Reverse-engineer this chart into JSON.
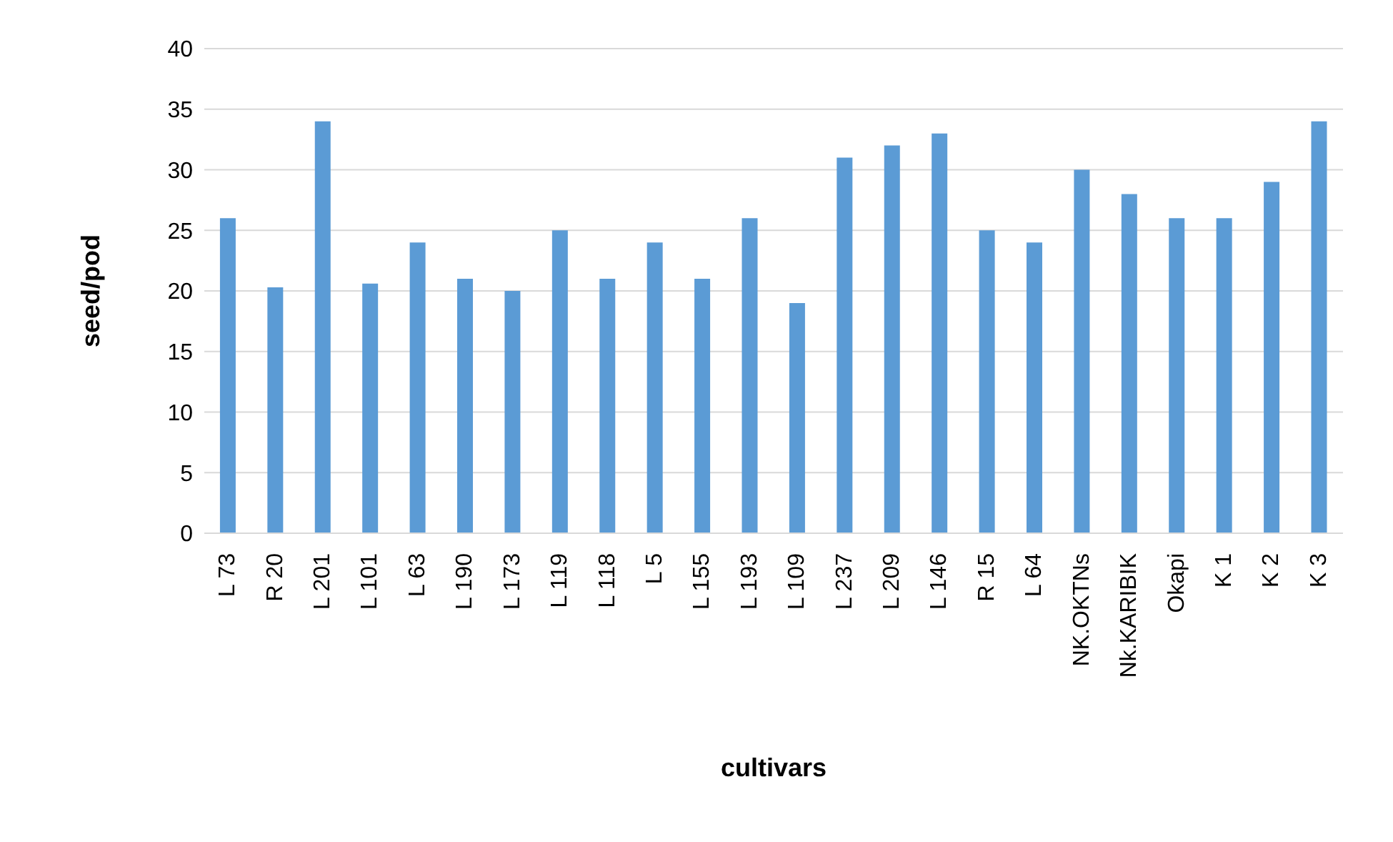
{
  "chart_data": {
    "type": "bar",
    "xlabel": "cultivars",
    "ylabel": "seed/pod",
    "categories": [
      "L 73",
      "R 20",
      "L 201",
      "L 101",
      "L 63",
      "L 190",
      "L 173",
      "L 119",
      "L 118",
      "L 5",
      "L 155",
      "L 193",
      "L 109",
      "L 237",
      "L 209",
      "L 146",
      "R 15",
      "L 64",
      "NK.OKTNs",
      "Nk.KARIBIK",
      "Okapi",
      "K 1",
      "K 2",
      "K 3"
    ],
    "values": [
      26,
      20.3,
      34,
      20.6,
      24,
      21,
      20,
      25,
      21,
      24,
      21,
      26,
      19,
      31,
      32,
      33,
      25,
      24,
      30,
      28,
      26,
      26,
      29,
      34
    ],
    "color": "#5b9bd5",
    "ylim": [
      0,
      40
    ],
    "yticks": [
      0,
      5,
      10,
      15,
      20,
      25,
      30,
      35,
      40
    ],
    "grid": "y",
    "legend": false
  }
}
